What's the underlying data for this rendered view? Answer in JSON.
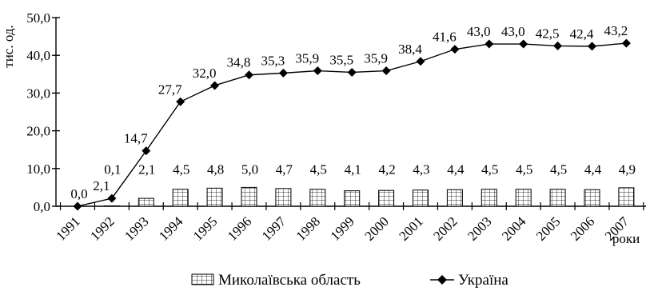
{
  "chart_data": {
    "type": "bar+line",
    "categories": [
      "1991",
      "1992",
      "1993",
      "1994",
      "1995",
      "1996",
      "1997",
      "1998",
      "1999",
      "2000",
      "2001",
      "2002",
      "2003",
      "2004",
      "2005",
      "2006",
      "2007"
    ],
    "series": [
      {
        "name": "Миколаївська область",
        "type": "bar",
        "values": [
          null,
          0.1,
          2.1,
          4.5,
          4.8,
          5.0,
          4.7,
          4.5,
          4.1,
          4.2,
          4.3,
          4.4,
          4.5,
          4.5,
          4.5,
          4.4,
          4.9
        ],
        "labels": [
          "",
          "0,1",
          "2,1",
          "4,5",
          "4,8",
          "5,0",
          "4,7",
          "4,5",
          "4,1",
          "4,2",
          "4,3",
          "4,4",
          "4,5",
          "4,5",
          "4,5",
          "4,4",
          "4,9"
        ]
      },
      {
        "name": "Україна",
        "type": "line",
        "values": [
          0.0,
          2.1,
          14.7,
          27.7,
          32.0,
          34.8,
          35.3,
          35.9,
          35.5,
          35.9,
          38.4,
          41.6,
          43.0,
          43.0,
          42.5,
          42.4,
          43.2
        ],
        "labels": [
          "0,0",
          "2,1",
          "14,7",
          "27,7",
          "32,0",
          "34,8",
          "35,3",
          "35,9",
          "35,5",
          "35,9",
          "38,4",
          "41,6",
          "43,0",
          "43,0",
          "42,5",
          "42,4",
          "43,2"
        ]
      }
    ],
    "ylabel": "тис. од.",
    "xlabel": "роки",
    "ylim": [
      0,
      50
    ],
    "yticks": [
      "0,0",
      "10,0",
      "20,0",
      "30,0",
      "40,0",
      "50,0"
    ],
    "grid": false,
    "legend_position": "bottom"
  }
}
